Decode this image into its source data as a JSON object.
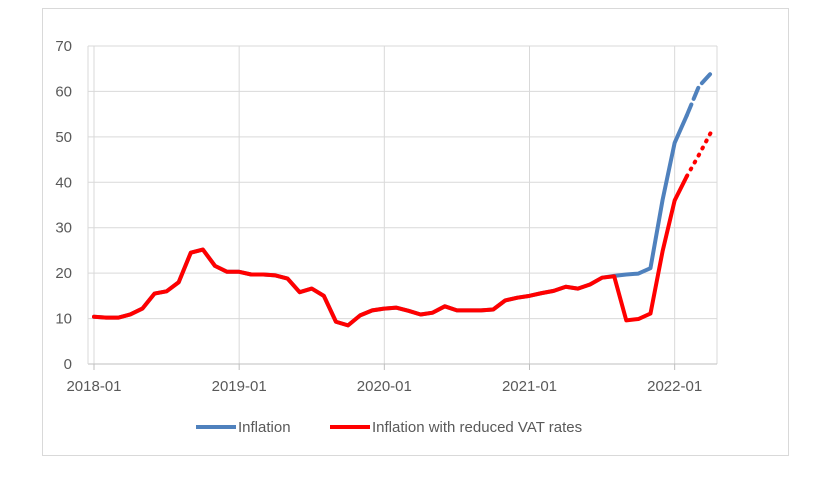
{
  "chart_data": {
    "type": "line",
    "title": "",
    "xlabel": "",
    "ylabel": "",
    "ylim": [
      0,
      70
    ],
    "yticks": [
      0,
      10,
      20,
      30,
      40,
      50,
      60,
      70
    ],
    "xticks": [
      "2018-01",
      "2019-01",
      "2020-01",
      "2021-01",
      "2022-01"
    ],
    "grid": true,
    "legend_position": "bottom",
    "x": [
      "2018-01",
      "2018-02",
      "2018-03",
      "2018-04",
      "2018-05",
      "2018-06",
      "2018-07",
      "2018-08",
      "2018-09",
      "2018-10",
      "2018-11",
      "2018-12",
      "2019-01",
      "2019-02",
      "2019-03",
      "2019-04",
      "2019-05",
      "2019-06",
      "2019-07",
      "2019-08",
      "2019-09",
      "2019-10",
      "2019-11",
      "2019-12",
      "2020-01",
      "2020-02",
      "2020-03",
      "2020-04",
      "2020-05",
      "2020-06",
      "2020-07",
      "2020-08",
      "2020-09",
      "2020-10",
      "2020-11",
      "2020-12",
      "2021-01",
      "2021-02",
      "2021-03",
      "2021-04",
      "2021-05",
      "2021-06",
      "2021-07",
      "2021-08",
      "2021-09",
      "2021-10",
      "2021-11",
      "2021-12",
      "2022-01",
      "2022-02",
      "2022-03",
      "2022-04"
    ],
    "series": [
      {
        "name": "Inflation",
        "color": "#4f81bd",
        "values": [
          10.4,
          10.2,
          10.2,
          10.9,
          12.2,
          15.5,
          16.0,
          18.0,
          24.5,
          25.2,
          21.6,
          20.3,
          20.3,
          19.7,
          19.7,
          19.5,
          18.8,
          15.8,
          16.6,
          15.0,
          9.3,
          8.5,
          10.7,
          11.8,
          12.2,
          12.4,
          11.7,
          10.9,
          11.3,
          12.7,
          11.8,
          11.8,
          11.8,
          12.0,
          14.0,
          14.6,
          15.0,
          15.6,
          16.1,
          17.0,
          16.6,
          17.5,
          19.0,
          19.4,
          19.7,
          19.9,
          21.1,
          36.1,
          48.7,
          54.7,
          61.1,
          64.0
        ],
        "dashed_from_index": 49
      },
      {
        "name": "Inflation with reduced VAT rates",
        "color": "#ff0000",
        "values": [
          10.4,
          10.2,
          10.2,
          10.9,
          12.2,
          15.5,
          16.0,
          18.0,
          24.5,
          25.2,
          21.6,
          20.3,
          20.3,
          19.7,
          19.7,
          19.5,
          18.8,
          15.8,
          16.6,
          15.0,
          9.3,
          8.5,
          10.7,
          11.8,
          12.2,
          12.4,
          11.7,
          10.9,
          11.3,
          12.7,
          11.8,
          11.8,
          11.8,
          12.0,
          14.0,
          14.6,
          15.0,
          15.6,
          16.1,
          17.0,
          16.6,
          17.5,
          19.0,
          19.3,
          9.6,
          9.9,
          11.1,
          24.8,
          36.0,
          41.3,
          46.0,
          51.0
        ],
        "dotted_from_index": 49
      }
    ]
  }
}
